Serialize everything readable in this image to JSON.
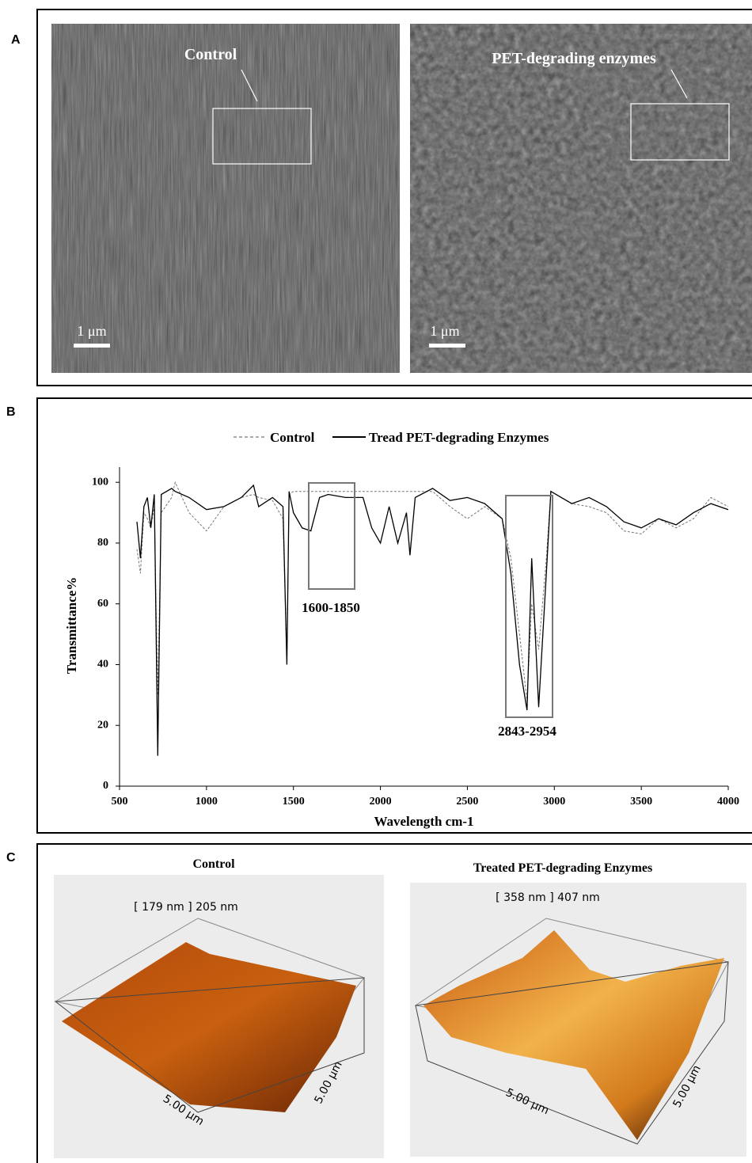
{
  "panels": {
    "a": {
      "label": "A",
      "control_label": "Control",
      "treated_label": "PET-degrading enzymes",
      "scale_bars": [
        "1 μm",
        "1 μm"
      ]
    },
    "b": {
      "label": "B"
    },
    "c": {
      "label": "C",
      "control_title": "Control",
      "treated_title": "Treated PET-degrading Enzymes",
      "control_height": "[ 179 nm ] 205 nm",
      "treated_height": "[ 358 nm ] 407 nm",
      "control_axes": [
        "5.00 μm",
        "5.00 μm"
      ],
      "treated_axes": [
        "5.00 μm",
        "5.00 μm"
      ]
    }
  },
  "chart_data": {
    "type": "line",
    "xlabel": "Wavelength cm-1",
    "ylabel": "Transmittance%",
    "x": [
      600,
      620,
      640,
      660,
      680,
      700,
      720,
      740,
      800,
      820,
      900,
      1000,
      1100,
      1200,
      1270,
      1300,
      1380,
      1440,
      1462,
      1475,
      1500,
      1550,
      1600,
      1650,
      1700,
      1800,
      1900,
      1950,
      2000,
      2050,
      2100,
      2150,
      2170,
      2200,
      2300,
      2400,
      2500,
      2600,
      2700,
      2750,
      2800,
      2843,
      2870,
      2910,
      2954,
      2980,
      3100,
      3200,
      3300,
      3400,
      3500,
      3600,
      3700,
      3800,
      3900,
      4000
    ],
    "series": [
      {
        "name": "Control",
        "color": "#777777",
        "dashed": true,
        "values": [
          78,
          70,
          90,
          88,
          85,
          92,
          30,
          90,
          95,
          100,
          90,
          84,
          92,
          95,
          96,
          95,
          94,
          88,
          42,
          96,
          97,
          97,
          97,
          97,
          97,
          97,
          97,
          97,
          97,
          97,
          97,
          97,
          97,
          97,
          97,
          92,
          88,
          92,
          88,
          75,
          50,
          28,
          60,
          45,
          75,
          97,
          93,
          92,
          90,
          84,
          83,
          88,
          85,
          88,
          95,
          92
        ]
      },
      {
        "name": "Tread PET-degrading Enzymes",
        "color": "#000000",
        "dashed": false,
        "values": [
          87,
          75,
          92,
          95,
          85,
          96,
          10,
          96,
          98,
          97,
          95,
          91,
          92,
          95,
          99,
          92,
          95,
          92,
          40,
          97,
          90,
          85,
          84,
          95,
          96,
          95,
          95,
          85,
          80,
          92,
          80,
          90,
          76,
          95,
          98,
          94,
          95,
          93,
          88,
          70,
          40,
          25,
          75,
          26,
          70,
          97,
          93,
          95,
          92,
          87,
          85,
          88,
          86,
          90,
          93,
          91
        ]
      }
    ],
    "xlim": [
      500,
      4000
    ],
    "ylim": [
      0,
      105
    ],
    "xticks": [
      500,
      1000,
      1500,
      2000,
      2500,
      3000,
      3500,
      4000
    ],
    "yticks": [
      0,
      20,
      40,
      60,
      80,
      100
    ],
    "grid": false,
    "annotations": [
      "1600-1850",
      "2843-2954"
    ]
  }
}
